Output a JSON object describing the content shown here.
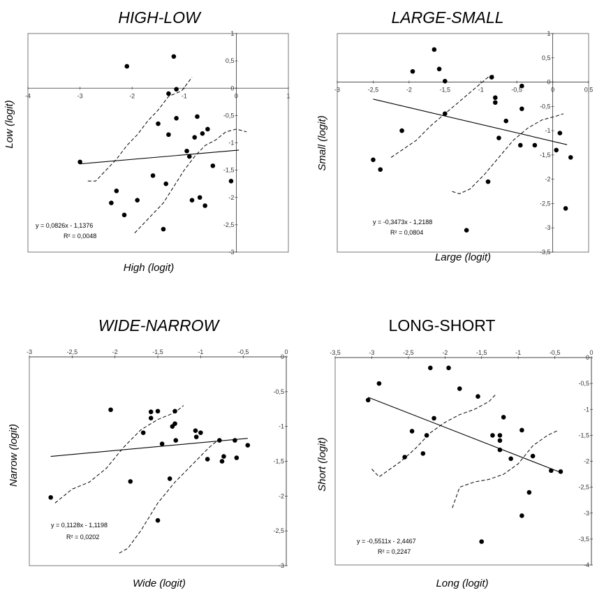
{
  "chart_data": [
    {
      "type": "scatter",
      "title": "HIGH-LOW",
      "xlabel": "High (logit)",
      "ylabel": "Low (logit)",
      "xlim": [
        -4,
        1
      ],
      "ylim": [
        -3,
        1
      ],
      "x_ticks": [
        "-4",
        "-3",
        "-2",
        "-1",
        "0",
        "1"
      ],
      "y_ticks": [
        "1",
        "0,5",
        "0",
        "-0,5",
        "-1",
        "-1,5",
        "-2",
        "-2,5",
        "-3"
      ],
      "grid": false,
      "equation": "y = 0,0826x - 1,1376",
      "r_squared": "R² = 0,0048",
      "points": [
        {
          "x": -3.0,
          "y": -1.35
        },
        {
          "x": -2.1,
          "y": 0.4
        },
        {
          "x": -1.2,
          "y": 0.58
        },
        {
          "x": -1.15,
          "y": -0.02
        },
        {
          "x": -1.3,
          "y": -0.1
        },
        {
          "x": -1.5,
          "y": -0.65
        },
        {
          "x": -1.15,
          "y": -0.55
        },
        {
          "x": -1.3,
          "y": -0.85
        },
        {
          "x": -0.75,
          "y": -0.52
        },
        {
          "x": -0.65,
          "y": -0.83
        },
        {
          "x": -0.55,
          "y": -0.75
        },
        {
          "x": -0.8,
          "y": -0.9
        },
        {
          "x": -0.95,
          "y": -1.15
        },
        {
          "x": -0.9,
          "y": -1.25
        },
        {
          "x": -0.45,
          "y": -1.42
        },
        {
          "x": -0.1,
          "y": -1.7
        },
        {
          "x": -1.35,
          "y": -1.75
        },
        {
          "x": -1.6,
          "y": -1.6
        },
        {
          "x": -0.7,
          "y": -2.0
        },
        {
          "x": -0.85,
          "y": -2.05
        },
        {
          "x": -0.6,
          "y": -2.15
        },
        {
          "x": -1.9,
          "y": -2.05
        },
        {
          "x": -2.3,
          "y": -1.88
        },
        {
          "x": -2.4,
          "y": -2.1
        },
        {
          "x": -2.15,
          "y": -2.32
        },
        {
          "x": -1.4,
          "y": -2.58
        }
      ],
      "fit": {
        "slope": 0.0826,
        "intercept": -1.1376,
        "x_range": [
          -3.0,
          0.05
        ]
      },
      "confidence_upper": [
        [
          -2.85,
          -1.7
        ],
        [
          -2.7,
          -1.7
        ],
        [
          -2.5,
          -1.5
        ],
        [
          -2.3,
          -1.3
        ],
        [
          -2.1,
          -1.05
        ],
        [
          -1.9,
          -0.85
        ],
        [
          -1.7,
          -0.6
        ],
        [
          -1.5,
          -0.4
        ],
        [
          -1.3,
          -0.15
        ],
        [
          -1.05,
          -0.05
        ],
        [
          -0.85,
          0.2
        ]
      ],
      "confidence_lower": [
        [
          -1.95,
          -2.65
        ],
        [
          -1.8,
          -2.5
        ],
        [
          -1.6,
          -2.3
        ],
        [
          -1.4,
          -2.1
        ],
        [
          -1.2,
          -1.8
        ],
        [
          -1.0,
          -1.5
        ],
        [
          -0.8,
          -1.25
        ],
        [
          -0.6,
          -1.05
        ],
        [
          -0.4,
          -0.95
        ],
        [
          -0.2,
          -0.8
        ],
        [
          0.0,
          -0.75
        ],
        [
          0.2,
          -0.8
        ]
      ]
    },
    {
      "type": "scatter",
      "title": "LARGE-SMALL",
      "xlabel": "Large (logit)",
      "ylabel": "Small (logit)",
      "xlim": [
        -3,
        0.5
      ],
      "ylim": [
        -3.5,
        1
      ],
      "x_ticks": [
        "-3",
        "-2,5",
        "-2",
        "-1,5",
        "-1",
        "-0,5",
        "0",
        "0,5"
      ],
      "y_ticks": [
        "1",
        "0,5",
        "0",
        "-0,5",
        "-1",
        "-1,5",
        "-2",
        "-2,5",
        "-3",
        "-3,5"
      ],
      "grid": false,
      "equation": "y = -0,3473x - 1,2188",
      "r_squared": "R² = 0,0804",
      "points": [
        {
          "x": -2.5,
          "y": -1.6
        },
        {
          "x": -2.4,
          "y": -1.8
        },
        {
          "x": -2.1,
          "y": -1.0
        },
        {
          "x": -1.95,
          "y": 0.22
        },
        {
          "x": -1.65,
          "y": 0.67
        },
        {
          "x": -1.58,
          "y": 0.27
        },
        {
          "x": -1.5,
          "y": 0.02
        },
        {
          "x": -1.5,
          "y": -0.65
        },
        {
          "x": -0.85,
          "y": 0.1
        },
        {
          "x": -0.8,
          "y": -0.32
        },
        {
          "x": -0.8,
          "y": -0.42
        },
        {
          "x": -0.43,
          "y": -0.08
        },
        {
          "x": -0.43,
          "y": -0.55
        },
        {
          "x": -0.65,
          "y": -0.8
        },
        {
          "x": -0.75,
          "y": -1.15
        },
        {
          "x": -0.45,
          "y": -1.3
        },
        {
          "x": -0.9,
          "y": -2.05
        },
        {
          "x": -0.25,
          "y": -1.3
        },
        {
          "x": 0.05,
          "y": -1.4
        },
        {
          "x": 0.1,
          "y": -1.05
        },
        {
          "x": 0.25,
          "y": -1.55
        },
        {
          "x": 0.18,
          "y": -2.6
        },
        {
          "x": -1.2,
          "y": -3.05
        }
      ],
      "fit": {
        "slope": -0.3473,
        "intercept": -1.2188,
        "x_range": [
          -2.5,
          0.2
        ]
      },
      "confidence_upper": [
        [
          -2.25,
          -1.55
        ],
        [
          -2.1,
          -1.4
        ],
        [
          -1.9,
          -1.2
        ],
        [
          -1.7,
          -0.9
        ],
        [
          -1.5,
          -0.65
        ],
        [
          -1.3,
          -0.4
        ],
        [
          -1.1,
          -0.15
        ],
        [
          -0.9,
          0.1
        ],
        [
          -0.8,
          0.15
        ]
      ],
      "confidence_lower": [
        [
          -1.4,
          -2.25
        ],
        [
          -1.3,
          -2.3
        ],
        [
          -1.15,
          -2.2
        ],
        [
          -0.95,
          -1.9
        ],
        [
          -0.75,
          -1.55
        ],
        [
          -0.55,
          -1.2
        ],
        [
          -0.35,
          -0.95
        ],
        [
          -0.15,
          -0.78
        ],
        [
          0.05,
          -0.7
        ],
        [
          0.15,
          -0.65
        ]
      ]
    },
    {
      "type": "scatter",
      "title": "WIDE-NARROW",
      "xlabel": "Wide (logit)",
      "ylabel": "Narrow (logit)",
      "xlim": [
        -3,
        0
      ],
      "ylim": [
        -3,
        0
      ],
      "x_ticks": [
        "-3",
        "-2,5",
        "-2",
        "-1,5",
        "-1",
        "-0,5",
        "0"
      ],
      "y_ticks": [
        "0",
        "-0,5",
        "-1",
        "-1,5",
        "-2",
        "-2,5",
        "-3"
      ],
      "grid": false,
      "equation": "y = 0,1128x - 1,1198",
      "r_squared": "R² = 0,0202",
      "points": [
        {
          "x": -2.75,
          "y": -2.02
        },
        {
          "x": -2.05,
          "y": -0.76
        },
        {
          "x": -1.82,
          "y": -1.79
        },
        {
          "x": -1.67,
          "y": -1.09
        },
        {
          "x": -1.58,
          "y": -0.79
        },
        {
          "x": -1.58,
          "y": -0.88
        },
        {
          "x": -1.5,
          "y": -0.78
        },
        {
          "x": -1.45,
          "y": -1.25
        },
        {
          "x": -1.3,
          "y": -0.78
        },
        {
          "x": -1.33,
          "y": -1.0
        },
        {
          "x": -1.3,
          "y": -0.96
        },
        {
          "x": -1.29,
          "y": -1.2
        },
        {
          "x": -1.36,
          "y": -1.75
        },
        {
          "x": -1.5,
          "y": -2.35
        },
        {
          "x": -1.06,
          "y": -1.06
        },
        {
          "x": -1.0,
          "y": -1.09
        },
        {
          "x": -1.05,
          "y": -1.15
        },
        {
          "x": -0.92,
          "y": -1.47
        },
        {
          "x": -0.78,
          "y": -1.2
        },
        {
          "x": -0.73,
          "y": -1.43
        },
        {
          "x": -0.75,
          "y": -1.5
        },
        {
          "x": -0.6,
          "y": -1.2
        },
        {
          "x": -0.58,
          "y": -1.45
        },
        {
          "x": -0.45,
          "y": -1.27
        }
      ],
      "fit": {
        "slope": 0.1128,
        "intercept": -1.1198,
        "x_range": [
          -2.75,
          -0.45
        ]
      },
      "confidence_upper": [
        [
          -2.7,
          -2.1
        ],
        [
          -2.5,
          -1.9
        ],
        [
          -2.3,
          -1.8
        ],
        [
          -2.1,
          -1.6
        ],
        [
          -1.9,
          -1.3
        ],
        [
          -1.7,
          -1.05
        ],
        [
          -1.5,
          -0.9
        ],
        [
          -1.3,
          -0.8
        ],
        [
          -1.2,
          -0.7
        ]
      ],
      "confidence_lower": [
        [
          -1.95,
          -2.82
        ],
        [
          -1.85,
          -2.75
        ],
        [
          -1.7,
          -2.5
        ],
        [
          -1.5,
          -2.1
        ],
        [
          -1.3,
          -1.8
        ],
        [
          -1.1,
          -1.55
        ],
        [
          -0.9,
          -1.3
        ],
        [
          -0.75,
          -1.15
        ]
      ]
    },
    {
      "type": "scatter",
      "title": "LONG-SHORT",
      "xlabel": "Long (logit)",
      "ylabel": "Short (logit)",
      "xlim": [
        -3.5,
        0
      ],
      "ylim": [
        -4,
        0
      ],
      "x_ticks": [
        "-3,5",
        "-3",
        "-2,5",
        "-2",
        "-1,5",
        "-1",
        "-0,5",
        "0"
      ],
      "y_ticks": [
        "0",
        "-0,5",
        "-1",
        "-1,5",
        "-2",
        "-2,5",
        "-3",
        "-3,5",
        "-4"
      ],
      "grid": false,
      "equation": "y = -0,5511x - 2,4467",
      "r_squared": "R² = 0,2247",
      "points": [
        {
          "x": -3.05,
          "y": -0.82
        },
        {
          "x": -2.9,
          "y": -0.5
        },
        {
          "x": -2.45,
          "y": -1.42
        },
        {
          "x": -2.55,
          "y": -1.92
        },
        {
          "x": -2.3,
          "y": -1.85
        },
        {
          "x": -2.25,
          "y": -1.5
        },
        {
          "x": -2.15,
          "y": -1.17
        },
        {
          "x": -2.2,
          "y": -0.2
        },
        {
          "x": -1.95,
          "y": -0.2
        },
        {
          "x": -1.8,
          "y": -0.6
        },
        {
          "x": -1.55,
          "y": -0.75
        },
        {
          "x": -1.5,
          "y": -3.55
        },
        {
          "x": -1.35,
          "y": -1.5
        },
        {
          "x": -1.25,
          "y": -1.5
        },
        {
          "x": -1.25,
          "y": -1.6
        },
        {
          "x": -1.25,
          "y": -1.78
        },
        {
          "x": -1.2,
          "y": -1.15
        },
        {
          "x": -1.1,
          "y": -1.95
        },
        {
          "x": -0.95,
          "y": -1.4
        },
        {
          "x": -0.95,
          "y": -3.05
        },
        {
          "x": -0.85,
          "y": -2.6
        },
        {
          "x": -0.8,
          "y": -1.9
        },
        {
          "x": -0.55,
          "y": -2.18
        },
        {
          "x": -0.42,
          "y": -2.2
        }
      ],
      "fit": {
        "slope": -0.5511,
        "intercept": -2.4467,
        "x_range": [
          -3.05,
          -0.45
        ]
      },
      "confidence_upper": [
        [
          -3.0,
          -2.15
        ],
        [
          -2.9,
          -2.3
        ],
        [
          -2.8,
          -2.2
        ],
        [
          -2.6,
          -2.0
        ],
        [
          -2.4,
          -1.75
        ],
        [
          -2.2,
          -1.45
        ],
        [
          -2.0,
          -1.25
        ],
        [
          -1.8,
          -1.1
        ],
        [
          -1.6,
          -1.0
        ],
        [
          -1.4,
          -0.85
        ],
        [
          -1.3,
          -0.7
        ]
      ],
      "confidence_lower": [
        [
          -1.9,
          -2.9
        ],
        [
          -1.8,
          -2.5
        ],
        [
          -1.6,
          -2.4
        ],
        [
          -1.4,
          -2.35
        ],
        [
          -1.2,
          -2.25
        ],
        [
          -1.0,
          -2.05
        ],
        [
          -0.8,
          -1.7
        ],
        [
          -0.6,
          -1.5
        ],
        [
          -0.45,
          -1.4
        ]
      ]
    }
  ]
}
